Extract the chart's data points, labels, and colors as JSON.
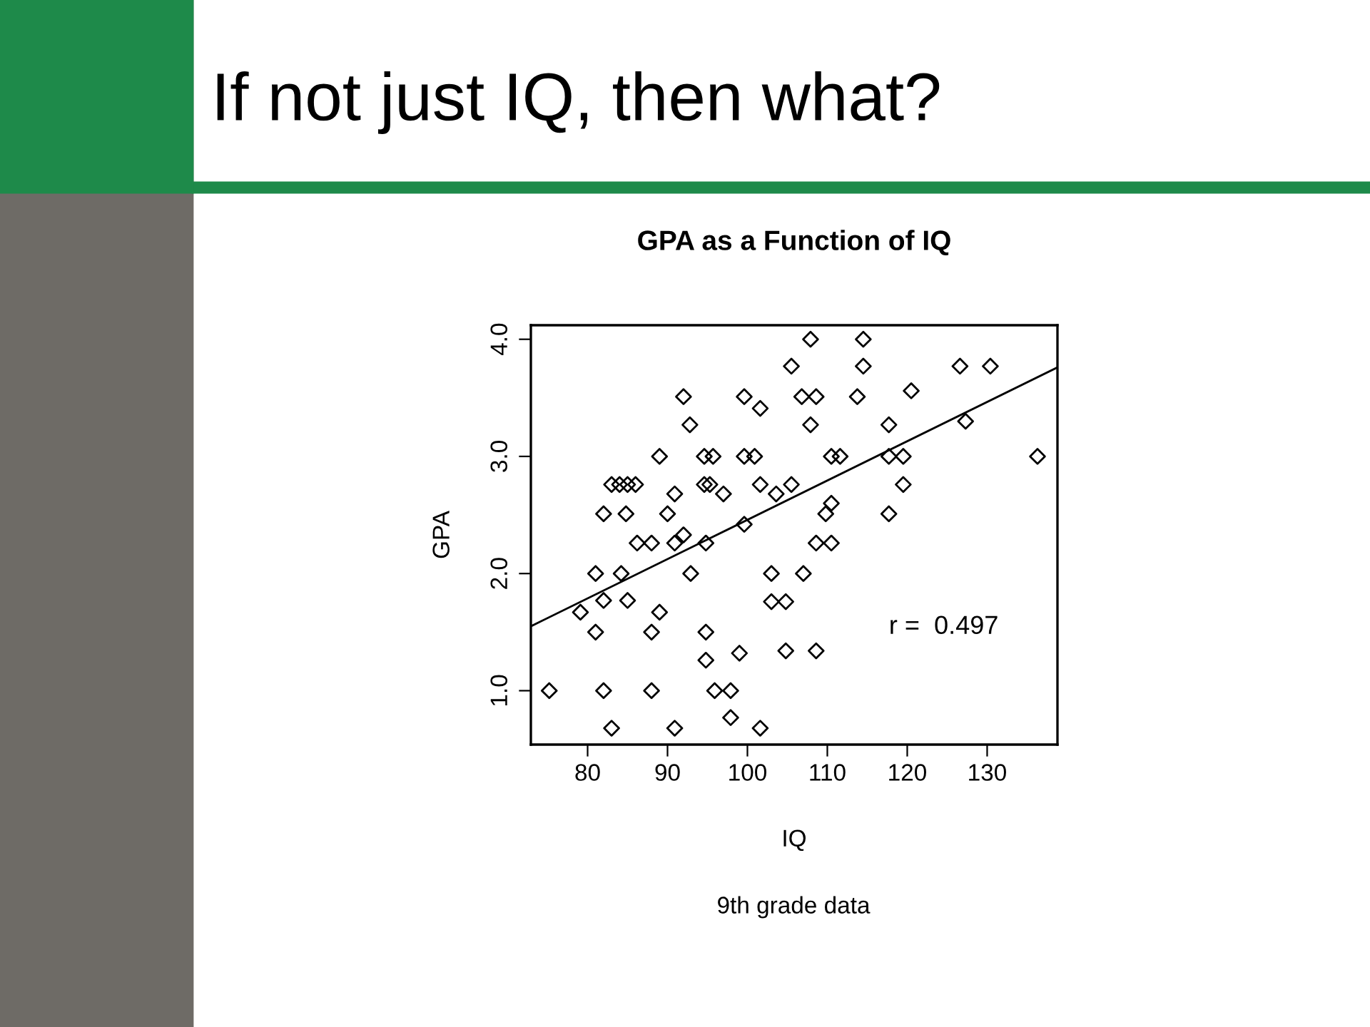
{
  "chart_data": {
    "type": "scatter",
    "title": "If not just IQ, then what?",
    "subtitle": "GPA as a Function of IQ",
    "xlabel": "IQ",
    "ylabel": "GPA",
    "annotations": [
      "r =  0.497",
      "9th grade data"
    ],
    "xlim": [
      72.9,
      138.8
    ],
    "ylim": [
      0.54,
      4.12
    ],
    "xticks": [
      80,
      90,
      100,
      110,
      120,
      130
    ],
    "yticks": [
      {
        "value": 1,
        "label": "1.0"
      },
      {
        "value": 2,
        "label": "2.0"
      },
      {
        "value": 3,
        "label": "3.0"
      },
      {
        "value": 4,
        "label": "4.0"
      }
    ],
    "grid": false,
    "marker": "diamond",
    "series": [
      {
        "color": "#000000",
        "x": [
          75.2,
          79.1,
          81,
          81,
          82,
          82,
          82,
          83,
          83,
          84,
          85,
          86,
          84.2,
          84.8,
          85,
          86.2,
          88,
          88,
          88,
          89,
          89,
          90,
          90.9,
          90.9,
          90.9,
          92,
          92,
          92.8,
          92.9,
          94.6,
          95.3,
          94.8,
          94.8,
          94.8,
          94.6,
          95.7,
          95.9,
          97,
          97.9,
          97.9,
          99,
          99.6,
          99.6,
          99.6,
          100.9,
          101.6,
          101.6,
          101.6,
          103,
          103,
          103.6,
          104.8,
          104.8,
          105.5,
          105.5,
          107,
          107.9,
          107.9,
          106.8,
          108.6,
          108.6,
          108.6,
          109.8,
          110.5,
          110.5,
          110.5,
          111.6,
          113.75,
          114.5,
          114.5,
          117.7,
          117.7,
          117.7,
          119.5,
          119.5,
          120.5,
          126.6,
          127.3,
          130.4,
          136.3
        ],
        "values": [
          1.0,
          1.67,
          2.0,
          1.5,
          2.51,
          1.77,
          1.0,
          0.68,
          2.76,
          2.76,
          2.76,
          2.76,
          2.0,
          2.51,
          1.77,
          2.26,
          2.26,
          1.5,
          1.0,
          3.0,
          1.67,
          2.51,
          2.68,
          2.26,
          0.68,
          2.33,
          3.51,
          3.27,
          2.0,
          2.76,
          2.76,
          2.26,
          1.5,
          1.26,
          3.0,
          3.0,
          1.0,
          2.68,
          1.0,
          0.77,
          1.32,
          3.51,
          3.0,
          2.42,
          3.0,
          3.41,
          2.76,
          0.68,
          2.0,
          1.76,
          2.68,
          1.76,
          1.34,
          3.77,
          2.76,
          2.0,
          4.0,
          3.27,
          3.51,
          3.51,
          2.26,
          1.34,
          2.51,
          3.0,
          2.6,
          2.26,
          3.0,
          3.51,
          4.0,
          3.77,
          3.27,
          3.0,
          2.51,
          3.0,
          2.76,
          3.56,
          3.77,
          3.3,
          3.77,
          3.0
        ]
      },
      {
        "type": "line",
        "color": "#000000",
        "marker": "none",
        "x": [
          72.9,
          138.8
        ],
        "values": [
          1.55,
          3.76
        ]
      }
    ]
  }
}
